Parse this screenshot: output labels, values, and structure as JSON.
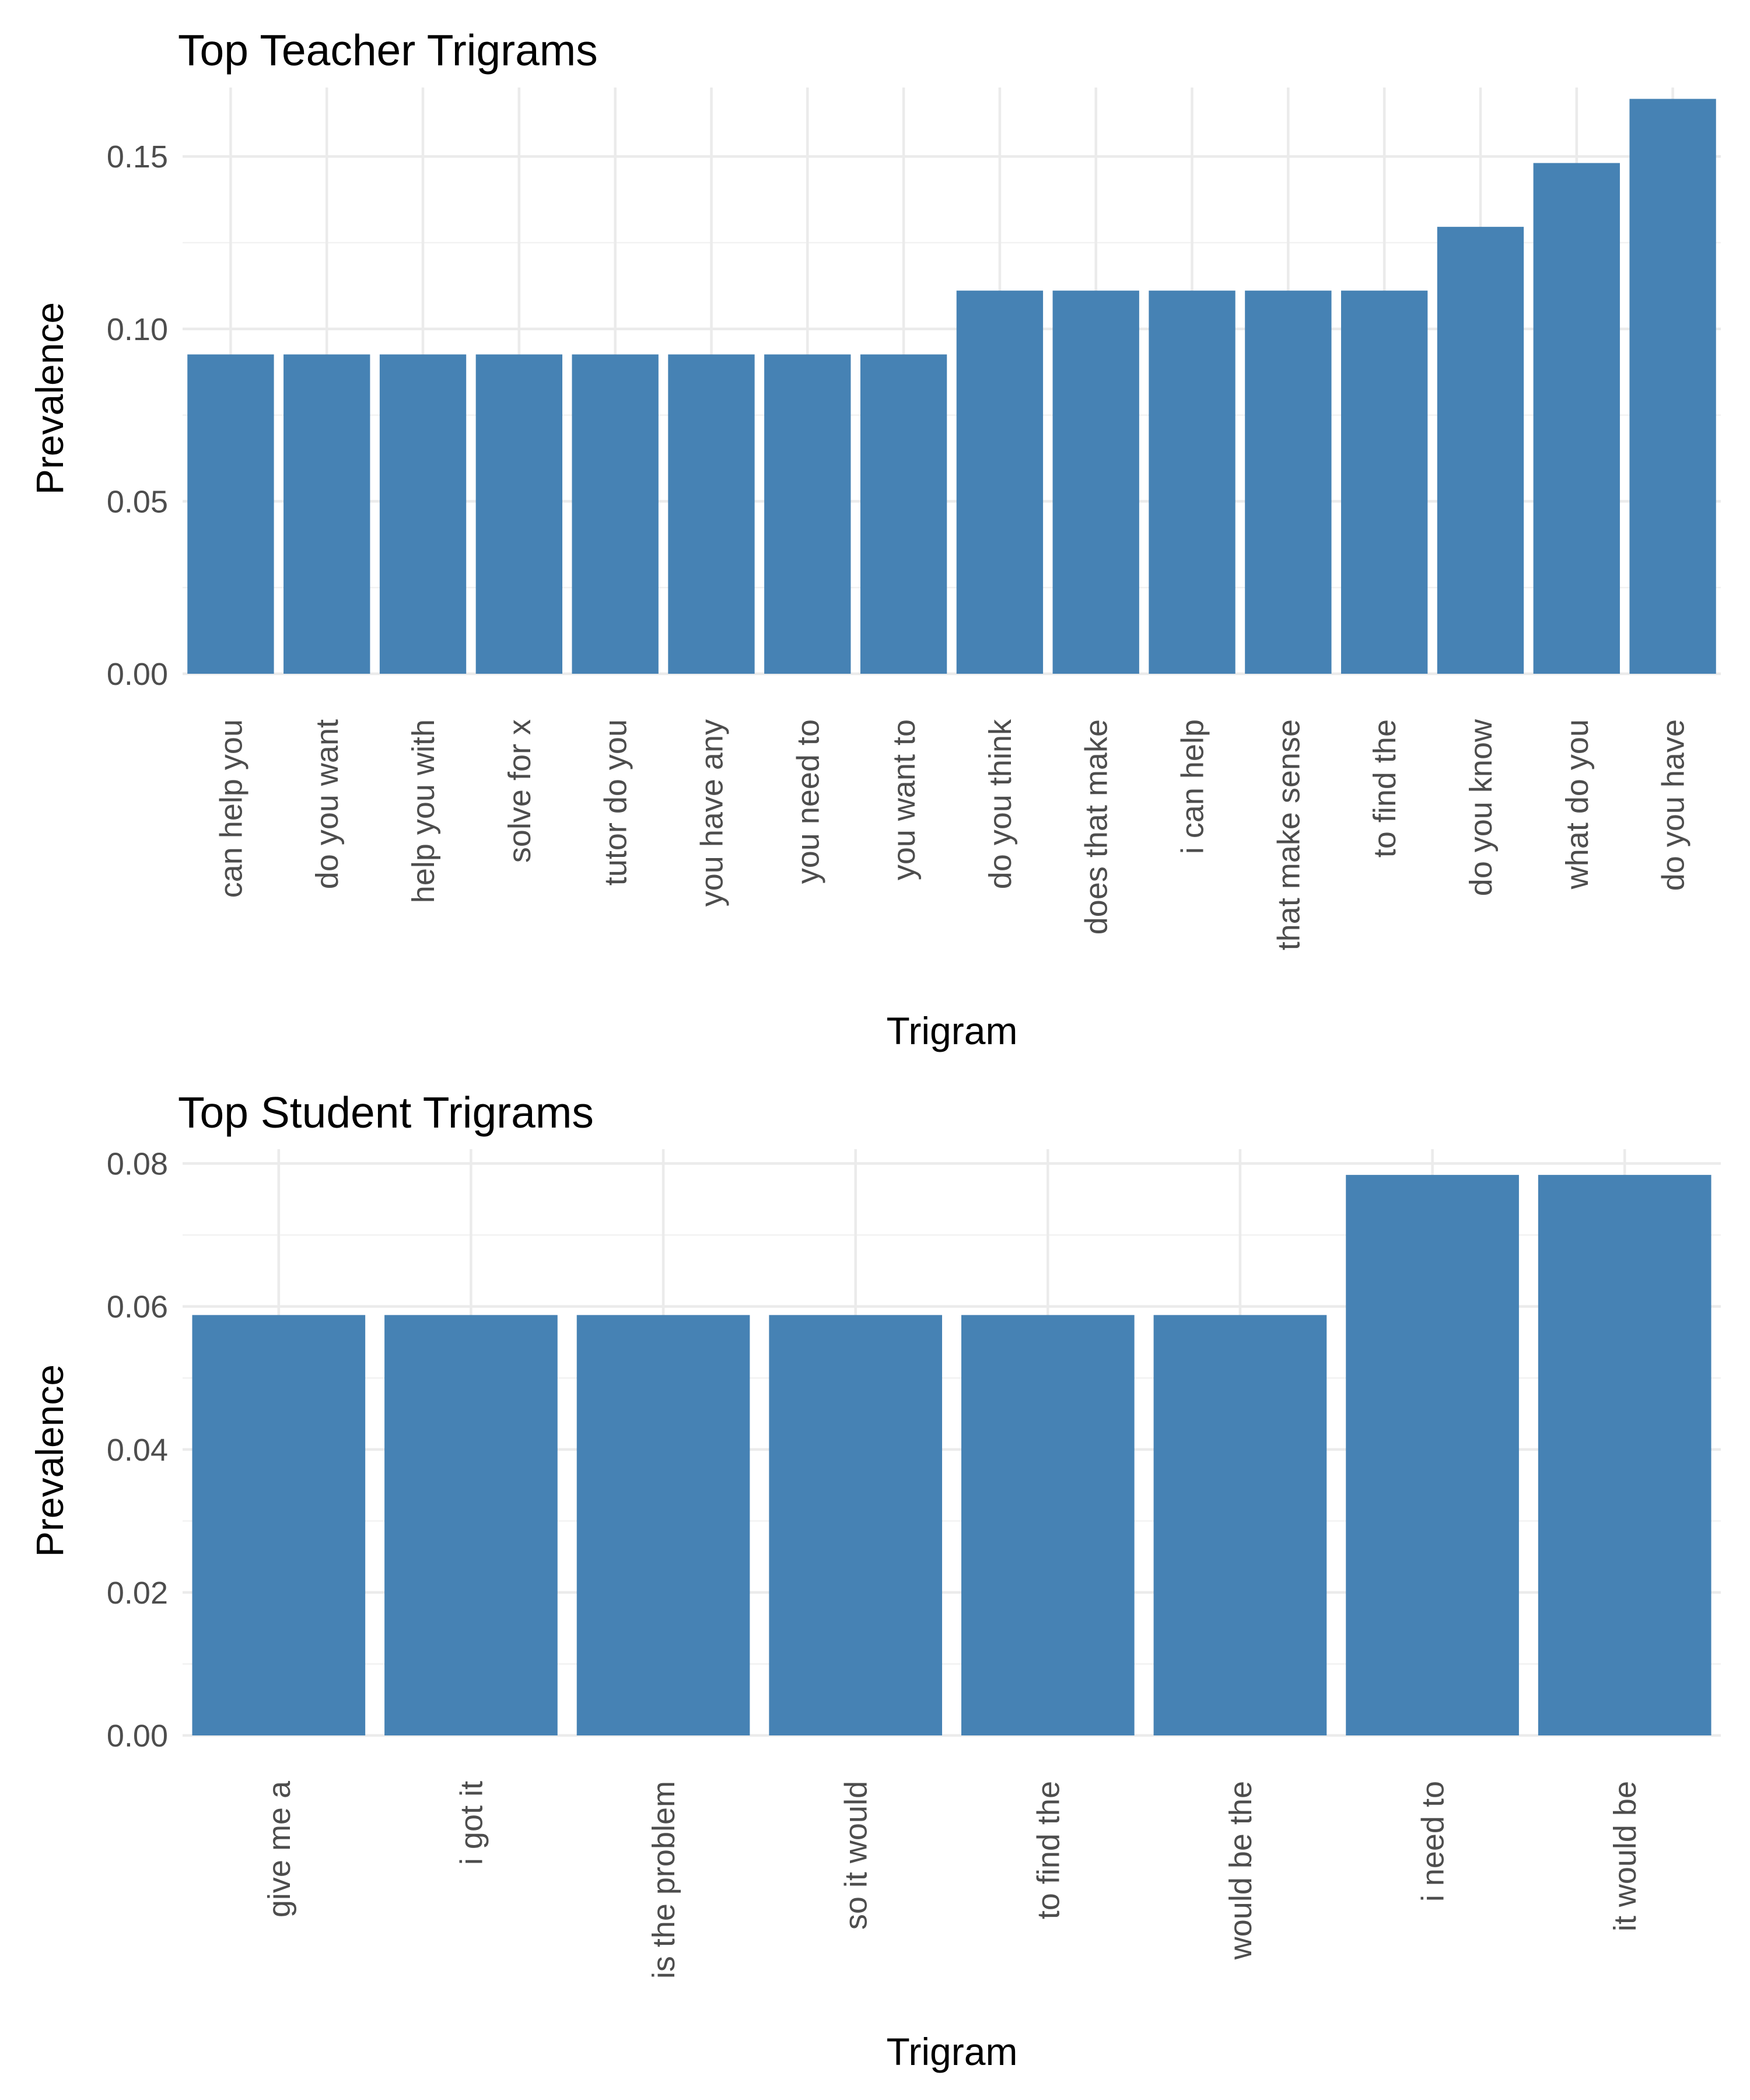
{
  "charts": [
    {
      "chart_data": {
        "type": "bar",
        "title": "Top Teacher Trigrams",
        "xlabel": "Trigram",
        "ylabel": "Prevalence",
        "categories": [
          "can help you",
          "do you want",
          "help you with",
          "solve for x",
          "tutor do you",
          "you have any",
          "you need to",
          "you want to",
          "do you think",
          "does that make",
          "i can help",
          "that make sense",
          "to find the",
          "do you know",
          "what do you",
          "do you have"
        ],
        "values": [
          0.0926,
          0.0926,
          0.0926,
          0.0926,
          0.0926,
          0.0926,
          0.0926,
          0.0926,
          0.1111,
          0.1111,
          0.1111,
          0.1111,
          0.1111,
          0.1296,
          0.1481,
          0.1667
        ],
        "ylim": [
          0,
          0.17
        ],
        "yticks": [
          "0.00",
          "0.05",
          "0.10",
          "0.15"
        ],
        "ytick_values": [
          0,
          0.05,
          0.1,
          0.15
        ],
        "grid": true,
        "bar_color": "#4682b4"
      }
    },
    {
      "chart_data": {
        "type": "bar",
        "title": "Top Student Trigrams",
        "xlabel": "Trigram",
        "ylabel": "Prevalence",
        "categories": [
          "give me a",
          "i got it",
          "is the problem",
          "so it would",
          "to find the",
          "would be the",
          "i need to",
          "it would be"
        ],
        "values": [
          0.0588,
          0.0588,
          0.0588,
          0.0588,
          0.0588,
          0.0588,
          0.0784,
          0.0784
        ],
        "ylim": [
          0,
          0.082
        ],
        "yticks": [
          "0.00",
          "0.02",
          "0.04",
          "0.06",
          "0.08"
        ],
        "ytick_values": [
          0,
          0.02,
          0.04,
          0.06,
          0.08
        ],
        "grid": true,
        "bar_color": "#4682b4"
      }
    }
  ]
}
